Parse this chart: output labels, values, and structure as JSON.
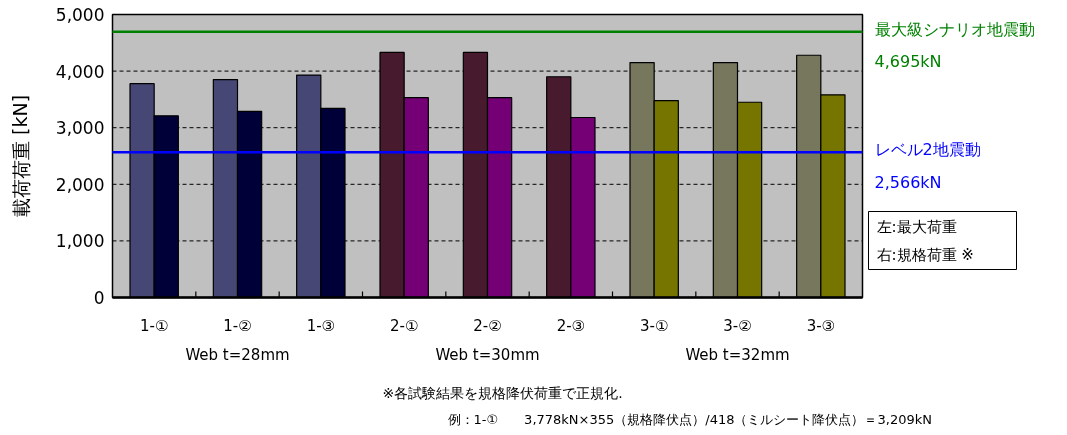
{
  "chart_data": {
    "type": "bar",
    "ylabel": "載荷荷重 [kN]",
    "categories": [
      "1-①",
      "1-②",
      "1-③",
      "2-①",
      "2-②",
      "2-③",
      "3-①",
      "3-②",
      "3-③"
    ],
    "series": [
      {
        "colors": [
          "#474775",
          "#474775",
          "#474775",
          "#471a2e",
          "#471a2e",
          "#471a2e",
          "#77775d",
          "#77775d",
          "#77775d"
        ],
        "values": [
          3778,
          3850,
          3930,
          4330,
          4330,
          3900,
          4150,
          4150,
          4280
        ]
      },
      {
        "colors": [
          "#000038",
          "#000038",
          "#000038",
          "#750075",
          "#750075",
          "#750075",
          "#757500",
          "#757500",
          "#757500"
        ],
        "values": [
          3209,
          3290,
          3340,
          3530,
          3530,
          3180,
          3480,
          3450,
          3580
        ]
      }
    ],
    "ylim": [
      0,
      5000
    ],
    "yticks": [
      {
        "value": 0,
        "label": "0"
      },
      {
        "value": 1000,
        "label": "1,000"
      },
      {
        "value": 2000,
        "label": "2,000"
      },
      {
        "value": 3000,
        "label": "3,000"
      },
      {
        "value": 4000,
        "label": "4,000"
      },
      {
        "value": 5000,
        "label": "5,000"
      }
    ],
    "grid": "y",
    "ref_lines": [
      {
        "axis": "y",
        "value": 4695,
        "label": "最大級シナリオ地震動\n4,695kN",
        "color": "#008000"
      },
      {
        "axis": "y",
        "value": 2566,
        "label": "レベル2地震動\n2,566kN",
        "color": "#0000ff"
      }
    ],
    "annotations": [
      "Web t=28mm",
      "Web t=30mm",
      "Web t=32mm",
      "左:最大荷重",
      "右:規格荷重 ※",
      "※各試験結果を規格降伏荷重で正規化.",
      "例：1-①　　3,778kN×355（規格降伏点）/418（ミルシート降伏点）＝3,209kN"
    ]
  }
}
